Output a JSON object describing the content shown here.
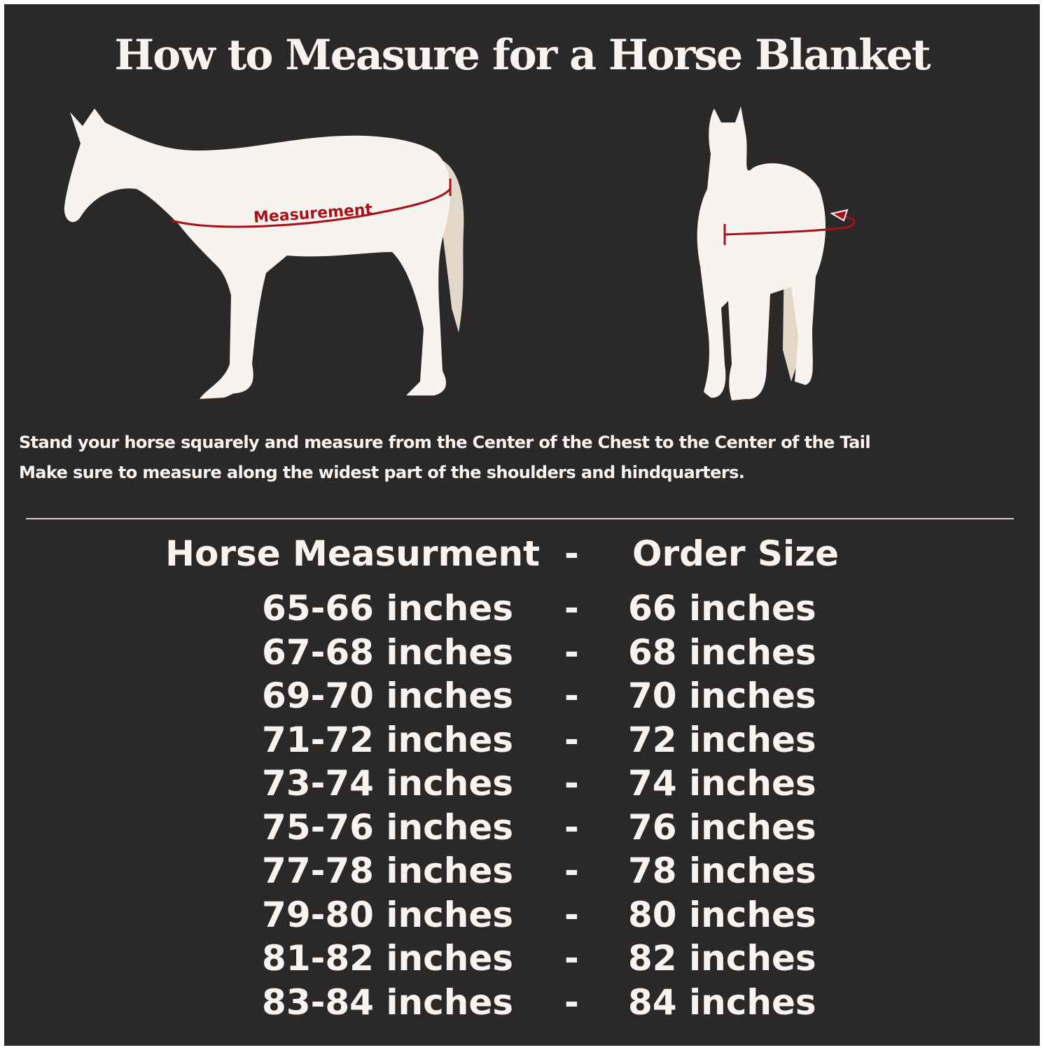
{
  "title": "How to Measure for a Horse Blanket",
  "diagram": {
    "side_label": "Measurement",
    "colors": {
      "background": "#2a2828",
      "horse": "#f7f3ee",
      "tail": "#e3d7c8",
      "measure_line": "#a8111a"
    }
  },
  "instructions": [
    "Stand your horse squarely and measure from the Center of the Chest to the Center of the Tail",
    "Make sure to measure along the widest part of the shoulders and hindquarters."
  ],
  "table": {
    "header": {
      "measurement": "Horse Measurment",
      "separator": "-",
      "size": "Order Size"
    },
    "rows": [
      {
        "measurement": "65-66 inches",
        "separator": "-",
        "size": "66 inches"
      },
      {
        "measurement": "67-68 inches",
        "separator": "-",
        "size": "68 inches"
      },
      {
        "measurement": "69-70 inches",
        "separator": "-",
        "size": "70 inches"
      },
      {
        "measurement": "71-72 inches",
        "separator": "-",
        "size": "72 inches"
      },
      {
        "measurement": "73-74 inches",
        "separator": "-",
        "size": "74 inches"
      },
      {
        "measurement": "75-76 inches",
        "separator": "-",
        "size": "76 inches"
      },
      {
        "measurement": "77-78 inches",
        "separator": "-",
        "size": "78 inches"
      },
      {
        "measurement": "79-80 inches",
        "separator": "-",
        "size": "80 inches"
      },
      {
        "measurement": "81-82 inches",
        "separator": "-",
        "size": "82 inches"
      },
      {
        "measurement": "83-84 inches",
        "separator": "-",
        "size": "84 inches"
      }
    ]
  }
}
